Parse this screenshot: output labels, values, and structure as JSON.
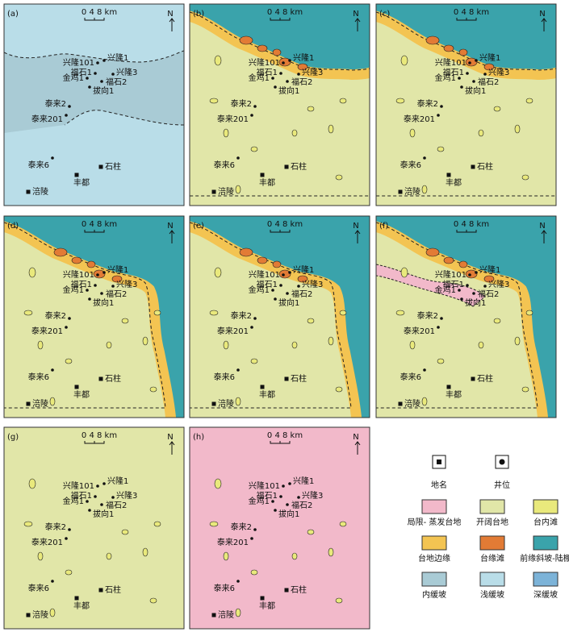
{
  "panels": [
    {
      "label": "(a)",
      "scale": "0 4 8 km",
      "north": "N",
      "places": [
        "兴隆101",
        "兴隆1",
        "金鸡1",
        "福石1",
        "福石2",
        "兴隆3",
        "拔向1",
        "泰来2",
        "泰来201",
        "泰来6",
        "丰都",
        "石柱",
        "涪陵"
      ]
    },
    {
      "label": "(b)",
      "scale": "0 4 8 km",
      "north": "N",
      "places": [
        "兴隆101",
        "兴隆1",
        "金鸡1",
        "福石1",
        "福石2",
        "兴隆3",
        "拔向1",
        "泰来2",
        "泰来201",
        "泰来6",
        "丰都",
        "石柱",
        "涪陵"
      ]
    },
    {
      "label": "(c)",
      "scale": "0 4 8 km",
      "north": "N",
      "places": [
        "兴隆101",
        "兴隆1",
        "金鸡1",
        "福石1",
        "福石2",
        "兴隆3",
        "拔向1",
        "泰来2",
        "泰来201",
        "泰来6",
        "丰都",
        "石柱",
        "涪陵"
      ]
    },
    {
      "label": "(d)",
      "scale": "0 4 8 km",
      "north": "N",
      "places": [
        "兴隆101",
        "兴隆1",
        "金鸡1",
        "福石1",
        "福石2",
        "兴隆3",
        "拔向1",
        "泰来2",
        "泰来201",
        "泰来6",
        "丰都",
        "石柱",
        "涪陵"
      ]
    },
    {
      "label": "(e)",
      "scale": "0 4 8 km",
      "north": "N",
      "places": [
        "兴隆101",
        "兴隆1",
        "金鸡1",
        "福石1",
        "福石2",
        "兴隆3",
        "拔向1",
        "泰来2",
        "泰来201",
        "泰来6",
        "丰都",
        "石柱",
        "涪陵"
      ]
    },
    {
      "label": "(f)",
      "scale": "0 4 8 km",
      "north": "N",
      "places": [
        "兴隆101",
        "兴隆1",
        "金鸡1",
        "福石1",
        "福石2",
        "兴隆3",
        "拔向1",
        "泰来2",
        "泰来201",
        "泰来6",
        "丰都",
        "石柱",
        "涪陵"
      ]
    },
    {
      "label": "(g)",
      "scale": "0 4 8 km",
      "north": "N",
      "places": [
        "兴隆101",
        "兴隆1",
        "金鸡1",
        "福石1",
        "福石2",
        "兴隆3",
        "拔向1",
        "泰来2",
        "泰来201",
        "泰来6",
        "丰都",
        "石柱",
        "涪陵"
      ]
    },
    {
      "label": "(h)",
      "scale": "0 4 8 km",
      "north": "N",
      "places": [
        "兴隆101",
        "兴隆1",
        "金鸡1",
        "福石1",
        "福石2",
        "兴隆3",
        "拔向1",
        "泰来2",
        "泰来201",
        "泰来6",
        "丰都",
        "石柱",
        "涪陵"
      ]
    }
  ],
  "legend": {
    "symbols": [
      "地名",
      "井位"
    ],
    "facies": [
      "局限- 蒸发台地",
      "开阔台地",
      "台内滩",
      "台地边缘",
      "台缘滩",
      "前缘斜坡-陆棚",
      "内缓坡",
      "浅缓坡",
      "深缓坡"
    ]
  }
}
